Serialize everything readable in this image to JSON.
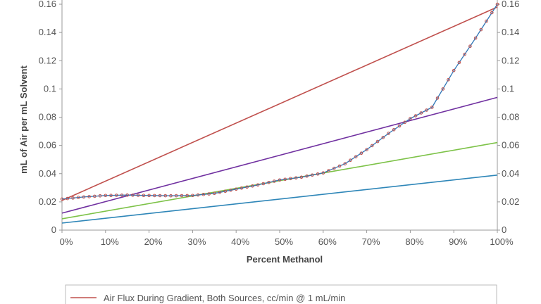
{
  "chart_data": {
    "type": "line",
    "xlabel": "Percent Methanol",
    "ylabel": "mL of Air per mL Solvent",
    "xlim": [
      0,
      100
    ],
    "ylim": [
      0,
      0.16
    ],
    "x_ticks": [
      "0%",
      "10%",
      "20%",
      "30%",
      "40%",
      "50%",
      "60%",
      "70%",
      "80%",
      "90%",
      "100%"
    ],
    "y_ticks": [
      "0",
      "0.02",
      "0.04",
      "0.06",
      "0.08",
      "0.1",
      "0.12",
      "0.14",
      "0.16"
    ],
    "y_ticks_right": [
      "0",
      "0.02",
      "0.04",
      "0.06",
      "0.08",
      "0.1",
      "0.12",
      "0.14",
      "0.16"
    ],
    "grid": false,
    "legend_position": "bottom",
    "series": [
      {
        "name": "Air Flux During Gradient, Both Sources, cc/min @ 1 mL/min",
        "color": "#c0504d",
        "marker": "none",
        "x": [
          0,
          100
        ],
        "y": [
          0.021,
          0.158
        ]
      },
      {
        "color": "#7030a0",
        "marker": "none",
        "x": [
          0,
          100
        ],
        "y": [
          0.012,
          0.094
        ]
      },
      {
        "color": "#7dc248",
        "marker": "none",
        "x": [
          0,
          100
        ],
        "y": [
          0.008,
          0.062
        ]
      },
      {
        "color": "#2e86b8",
        "marker": "none",
        "x": [
          0,
          100
        ],
        "y": [
          0.005,
          0.039
        ]
      },
      {
        "color": "#2e75b6",
        "marker": "open-circle",
        "marker_color": "#c0504d",
        "x": [
          0,
          5,
          10,
          15,
          20,
          25,
          30,
          35,
          40,
          45,
          50,
          55,
          60,
          65,
          70,
          75,
          80,
          85,
          90,
          95,
          100
        ],
        "y": [
          0.022,
          0.0235,
          0.0245,
          0.0248,
          0.0245,
          0.0243,
          0.0245,
          0.026,
          0.029,
          0.032,
          0.0355,
          0.0375,
          0.0405,
          0.047,
          0.057,
          0.0685,
          0.079,
          0.087,
          0.113,
          0.136,
          0.16
        ]
      }
    ]
  }
}
